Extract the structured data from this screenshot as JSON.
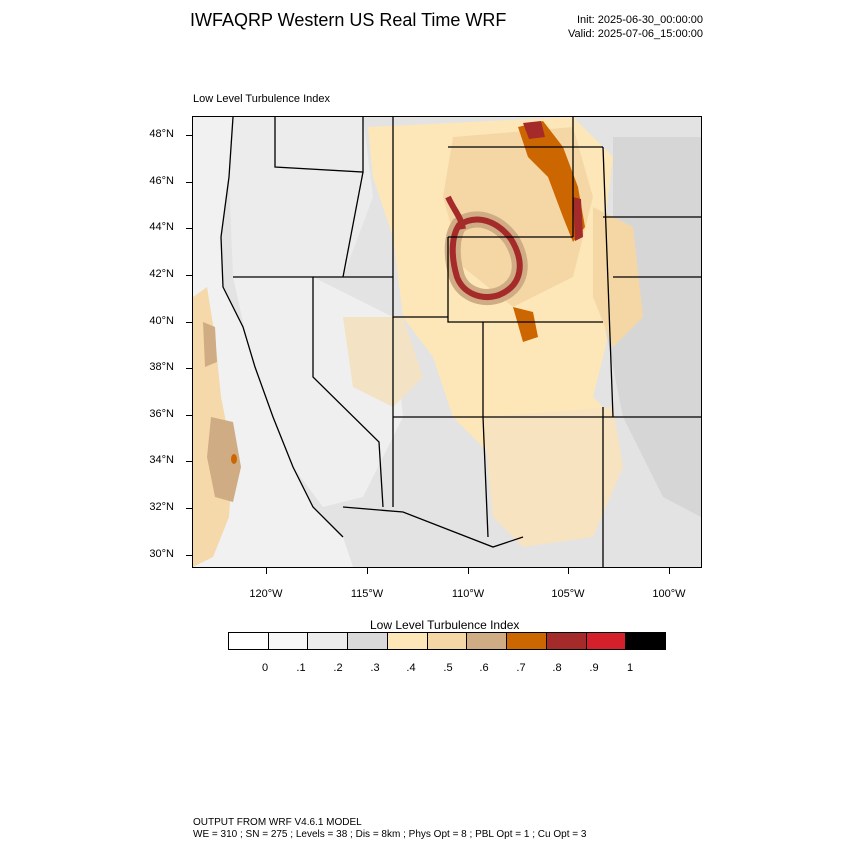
{
  "header": {
    "title": "IWFAQRP Western US Real Time WRF",
    "init": "Init: 2025-06-30_00:00:00",
    "valid": "Valid: 2025-07-06_15:00:00"
  },
  "map": {
    "panel_title": "Low Level Turbulence Index",
    "region": "Western United States",
    "lat_labels": [
      "48°N",
      "46°N",
      "44°N",
      "42°N",
      "40°N",
      "38°N",
      "36°N",
      "34°N",
      "32°N",
      "30°N"
    ],
    "lon_labels": [
      "120°W",
      "115°W",
      "110°W",
      "105°W",
      "100°W"
    ]
  },
  "colorbar": {
    "title": "Low Level Turbulence Index",
    "labels": [
      "0",
      ".1",
      ".2",
      ".3",
      ".4",
      ".5",
      ".6",
      ".7",
      ".8",
      ".9",
      "1"
    ],
    "colors": [
      "#ffffff",
      "#f7f7f7",
      "#ececec",
      "#d9d9d9",
      "#fde7b9",
      "#f5d7a6",
      "#cfac84",
      "#cc6600",
      "#a52a2a",
      "#d4202a",
      "#000000"
    ]
  },
  "footer": {
    "line1": "OUTPUT FROM WRF V4.6.1 MODEL",
    "line2": "WE = 310 ; SN = 275 ; Levels = 38 ; Dis = 8km ; Phys Opt = 8 ; PBL Opt = 1 ; Cu Opt = 3"
  }
}
